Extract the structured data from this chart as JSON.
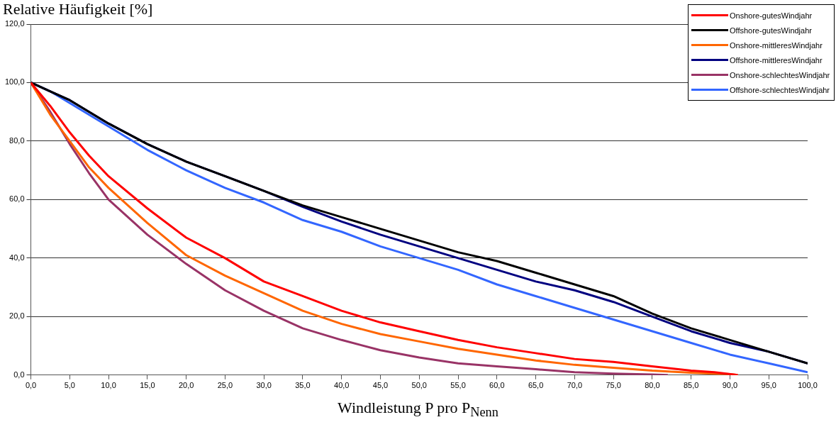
{
  "chart_data": {
    "type": "line",
    "title": "Relative Häufigkeit [%]",
    "xlabel": "Windleistung P pro P$_{Nenn}$",
    "xlim": [
      0,
      100
    ],
    "ylim": [
      0,
      120
    ],
    "xticks": [
      {
        "value": 0,
        "label": "0,0"
      },
      {
        "value": 5,
        "label": "5,0"
      },
      {
        "value": 10,
        "label": "10,0"
      },
      {
        "value": 15,
        "label": "15,0"
      },
      {
        "value": 20,
        "label": "20,0"
      },
      {
        "value": 25,
        "label": "25,0"
      },
      {
        "value": 30,
        "label": "30,0"
      },
      {
        "value": 35,
        "label": "35,0"
      },
      {
        "value": 40,
        "label": "40,0"
      },
      {
        "value": 45,
        "label": "45,0"
      },
      {
        "value": 50,
        "label": "50,0"
      },
      {
        "value": 55,
        "label": "55,0"
      },
      {
        "value": 60,
        "label": "60,0"
      },
      {
        "value": 65,
        "label": "65,0"
      },
      {
        "value": 70,
        "label": "70,0"
      },
      {
        "value": 75,
        "label": "75,0"
      },
      {
        "value": 80,
        "label": "80,0"
      },
      {
        "value": 85,
        "label": "85,0"
      },
      {
        "value": 90,
        "label": "90,0"
      },
      {
        "value": 95,
        "label": "95,0"
      },
      {
        "value": 100,
        "label": "100,0"
      }
    ],
    "yticks": [
      {
        "value": 0,
        "label": "0,0"
      },
      {
        "value": 20,
        "label": "20,0"
      },
      {
        "value": 40,
        "label": "40,0"
      },
      {
        "value": 60,
        "label": "60,0"
      },
      {
        "value": 80,
        "label": "80,0"
      },
      {
        "value": 100,
        "label": "100,0"
      },
      {
        "value": 120,
        "label": "120,0"
      }
    ],
    "grid": "y",
    "legend": "top right",
    "marker": "none",
    "line_style": "solid",
    "series": [
      {
        "name": "Onshore-gutesWindjahr",
        "color": "#ff0000",
        "x": [
          0,
          2.5,
          5,
          7.5,
          10,
          15,
          20,
          25,
          30,
          35,
          40,
          45,
          50,
          55,
          60,
          65,
          70,
          75,
          80,
          85,
          88,
          91
        ],
        "values": [
          100,
          92,
          83,
          75,
          68,
          57,
          47,
          40,
          32,
          27,
          22,
          18,
          15,
          12,
          9.5,
          7.5,
          5.5,
          4.5,
          3,
          1.5,
          1,
          0
        ]
      },
      {
        "name": "Offshore-gutesWindjahr",
        "color": "#000000",
        "x": [
          0,
          2.5,
          5,
          7.5,
          10,
          15,
          20,
          25,
          30,
          35,
          40,
          45,
          50,
          55,
          60,
          65,
          70,
          75,
          80,
          85,
          90,
          95,
          100
        ],
        "values": [
          100,
          97,
          94,
          90,
          86,
          79,
          73,
          68,
          63,
          58,
          54,
          50,
          46,
          42,
          39,
          35,
          31,
          27,
          21,
          16,
          12,
          8,
          4
        ]
      },
      {
        "name": "Onshore-mittleresWindjahr",
        "color": "#ff6600",
        "x": [
          0,
          2.5,
          5,
          7.5,
          10,
          15,
          20,
          25,
          30,
          35,
          40,
          45,
          50,
          55,
          60,
          65,
          70,
          75,
          80,
          85,
          90,
          91
        ],
        "values": [
          100,
          89,
          80,
          71,
          64,
          52,
          41,
          34,
          28,
          22,
          17.5,
          14,
          11.5,
          9,
          7,
          5,
          3.5,
          2.5,
          1.5,
          0.8,
          0.3,
          0
        ]
      },
      {
        "name": "Offshore-mittleresWindjahr",
        "color": "#000080",
        "x": [
          0,
          2.5,
          5,
          7.5,
          10,
          15,
          20,
          25,
          30,
          35,
          40,
          45,
          50,
          55,
          60,
          65,
          70,
          75,
          80,
          85,
          90,
          95,
          100
        ],
        "values": [
          100,
          97,
          94,
          90,
          86,
          79,
          73,
          68,
          63,
          57.5,
          52.5,
          48,
          44,
          40,
          36,
          32,
          29,
          25,
          20,
          15,
          11,
          8,
          4
        ]
      },
      {
        "name": "Onshore-schlechtesWindjahr",
        "color": "#993366",
        "x": [
          0,
          2.5,
          5,
          7.5,
          10,
          15,
          20,
          25,
          30,
          35,
          40,
          45,
          50,
          55,
          60,
          65,
          70,
          75,
          80,
          82
        ],
        "values": [
          100,
          90,
          79,
          69,
          60,
          48,
          38,
          29,
          22,
          16,
          12,
          8.5,
          6,
          4,
          3,
          2,
          1,
          0.5,
          0.2,
          0
        ]
      },
      {
        "name": "Offshore-schlechtesWindjahr",
        "color": "#3366ff",
        "x": [
          0,
          2.5,
          5,
          7.5,
          10,
          15,
          20,
          25,
          30,
          35,
          40,
          45,
          50,
          55,
          60,
          65,
          70,
          75,
          80,
          85,
          90,
          95,
          100
        ],
        "values": [
          100,
          97,
          93,
          89,
          85,
          77,
          70,
          64,
          59,
          53,
          49,
          44,
          40,
          36,
          31,
          27,
          23,
          19,
          15,
          11,
          7,
          4,
          1
        ]
      }
    ]
  }
}
